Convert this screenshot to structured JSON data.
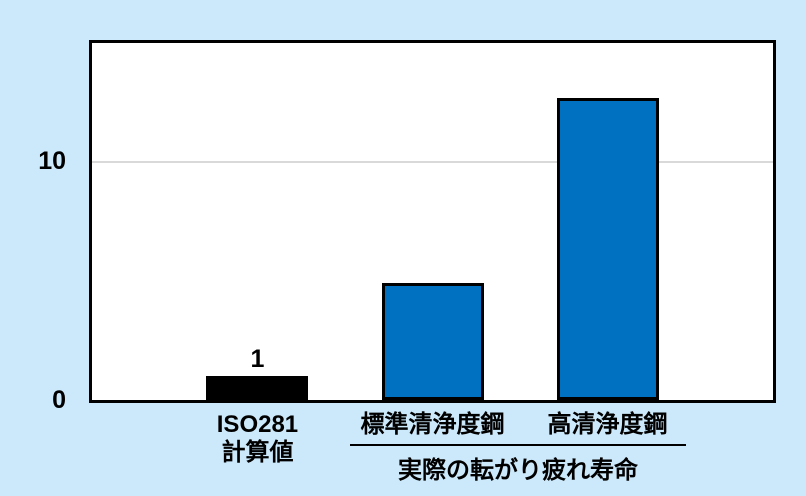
{
  "colors": {
    "page_background": "#cce9fb",
    "plot_background": "#ffffff",
    "axis_border": "#000000",
    "gridline": "#d9d9d9",
    "bar_blue": "#0070c0",
    "bar_black": "#000000",
    "text": "#000000"
  },
  "chart_data": {
    "type": "bar",
    "title": "",
    "xlabel": "",
    "ylabel": "",
    "categories": [
      "ISO281\n計算値",
      "標準清浄度鋼",
      "高清浄度鋼"
    ],
    "values": [
      1,
      4.9,
      12.7
    ],
    "bar_colors": [
      "#000000",
      "#0070c0",
      "#0070c0"
    ],
    "bar_border_color": "#000000",
    "data_labels": [
      "1",
      "",
      ""
    ],
    "ylim": [
      0,
      15
    ],
    "yticks": [
      {
        "value": 0,
        "label": "0"
      },
      {
        "value": 10,
        "label": "10"
      }
    ],
    "gridline_values": [
      10
    ],
    "legend_position": "none",
    "group_annotation": {
      "label": "実際の転がり疲れ寿命",
      "covers_categories": [
        "標準清浄度鋼",
        "高清浄度鋼"
      ]
    }
  }
}
